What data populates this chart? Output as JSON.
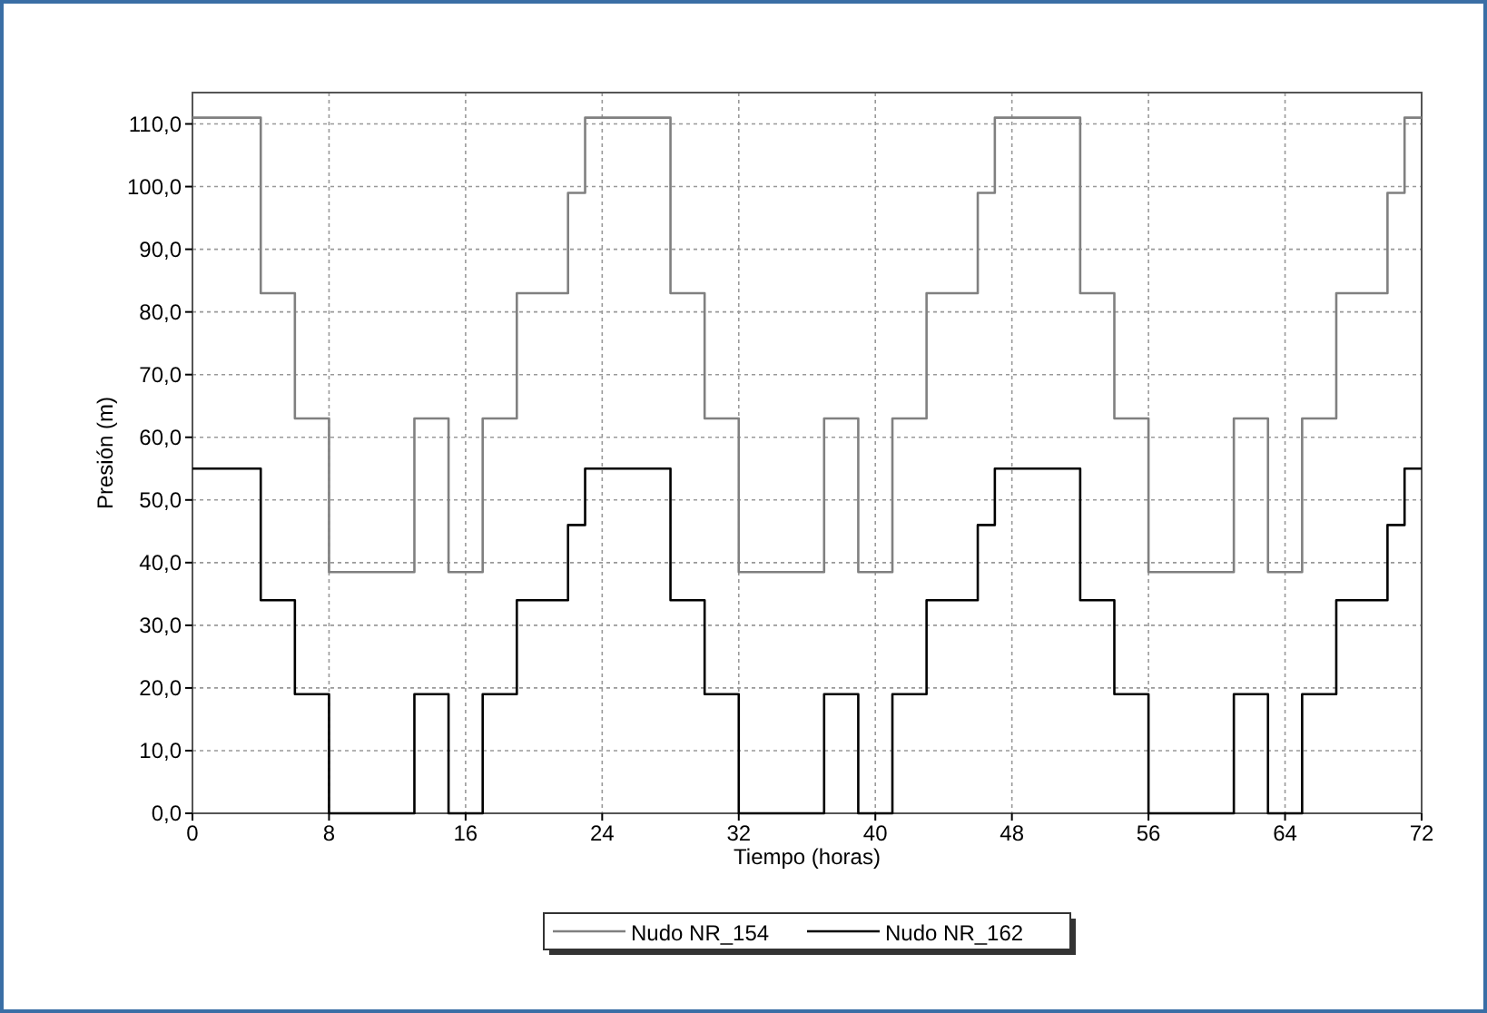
{
  "chart_data": {
    "type": "step",
    "xlabel": "Tiempo (horas)",
    "ylabel": "Presión (m)",
    "x": [
      0,
      1,
      2,
      3,
      4,
      5,
      6,
      7,
      8,
      9,
      10,
      11,
      12,
      13,
      14,
      15,
      16,
      17,
      18,
      19,
      20,
      21,
      22,
      23,
      24,
      25,
      26,
      27,
      28,
      29,
      30,
      31,
      32,
      33,
      34,
      35,
      36,
      37,
      38,
      39,
      40,
      41,
      42,
      43,
      44,
      45,
      46,
      47,
      48,
      49,
      50,
      51,
      52,
      53,
      54,
      55,
      56,
      57,
      58,
      59,
      60,
      61,
      62,
      63,
      64,
      65,
      66,
      67,
      68,
      69,
      70,
      71,
      72
    ],
    "series": [
      {
        "name": "Nudo NR_154",
        "color": "#808080",
        "values": [
          111,
          111,
          111,
          111,
          83,
          83,
          63,
          63,
          38.5,
          38.5,
          38.5,
          38.5,
          38.5,
          63,
          63,
          38.5,
          38.5,
          63,
          63,
          83,
          83,
          83,
          99,
          111,
          111,
          111,
          111,
          111,
          83,
          83,
          63,
          63,
          38.5,
          38.5,
          38.5,
          38.5,
          38.5,
          63,
          63,
          38.5,
          38.5,
          63,
          63,
          83,
          83,
          83,
          99,
          111,
          111,
          111,
          111,
          111,
          83,
          83,
          63,
          63,
          38.5,
          38.5,
          38.5,
          38.5,
          38.5,
          63,
          63,
          38.5,
          38.5,
          63,
          63,
          83,
          83,
          83,
          99,
          111,
          111
        ]
      },
      {
        "name": "Nudo NR_162",
        "color": "#000000",
        "values": [
          55,
          55,
          55,
          55,
          34,
          34,
          19,
          19,
          0,
          0,
          0,
          0,
          0,
          19,
          19,
          0,
          0,
          19,
          19,
          34,
          34,
          34,
          46,
          55,
          55,
          55,
          55,
          55,
          34,
          34,
          19,
          19,
          0,
          0,
          0,
          0,
          0,
          19,
          19,
          0,
          0,
          19,
          19,
          34,
          34,
          34,
          46,
          55,
          55,
          55,
          55,
          55,
          34,
          34,
          19,
          19,
          0,
          0,
          0,
          0,
          0,
          19,
          19,
          0,
          0,
          19,
          19,
          34,
          34,
          34,
          46,
          55,
          55
        ]
      }
    ],
    "xlim": [
      0,
      72
    ],
    "xticks": [
      0,
      8,
      16,
      24,
      32,
      40,
      48,
      56,
      64,
      72
    ],
    "ylim": [
      0,
      115
    ],
    "yticks": [
      {
        "value": 0,
        "label": "0,0"
      },
      {
        "value": 10,
        "label": "10,0"
      },
      {
        "value": 20,
        "label": "20,0"
      },
      {
        "value": 30,
        "label": "30,0"
      },
      {
        "value": 40,
        "label": "40,0"
      },
      {
        "value": 50,
        "label": "50,0"
      },
      {
        "value": 60,
        "label": "60,0"
      },
      {
        "value": 70,
        "label": "70,0"
      },
      {
        "value": 80,
        "label": "80,0"
      },
      {
        "value": 90,
        "label": "90,0"
      },
      {
        "value": 100,
        "label": "100,0"
      },
      {
        "value": 110,
        "label": "110,0"
      }
    ],
    "grid": true,
    "legend": "bottom",
    "line_style": "solid",
    "marker": "none"
  }
}
